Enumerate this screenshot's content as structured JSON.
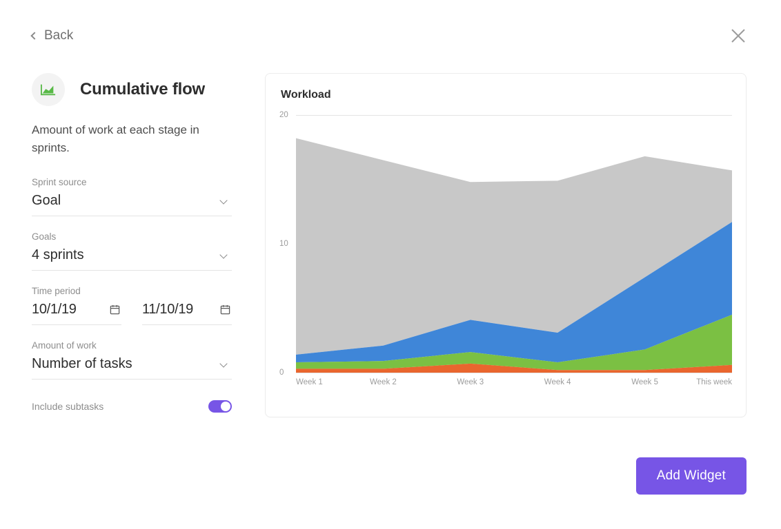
{
  "nav": {
    "back_label": "Back"
  },
  "header": {
    "title": "Cumulative flow",
    "description": "Amount of work at each stage in sprints.",
    "icon_color": "#58b947"
  },
  "form": {
    "sprint_source": {
      "label": "Sprint source",
      "value": "Goal"
    },
    "goals": {
      "label": "Goals",
      "value": "4 sprints"
    },
    "time_period": {
      "label": "Time period",
      "start": "10/1/19",
      "end": "11/10/19"
    },
    "amount_of_work": {
      "label": "Amount of work",
      "value": "Number of tasks"
    },
    "include_subtasks": {
      "label": "Include subtasks",
      "value": true
    }
  },
  "chart": {
    "title": "Workload",
    "type": "stacked-area",
    "categories": [
      "Week 1",
      "Week 2",
      "Week 3",
      "Week 4",
      "Week 5",
      "This week"
    ],
    "ylim": [
      0,
      20
    ],
    "yticks": [
      0,
      10,
      20
    ],
    "series": [
      {
        "name": "orange",
        "color": "#e9662e",
        "values": [
          0.3,
          0.3,
          0.7,
          0.2,
          0.2,
          0.6
        ]
      },
      {
        "name": "green",
        "color": "#7bc043",
        "values": [
          0.5,
          0.6,
          0.9,
          0.6,
          1.6,
          3.9
        ]
      },
      {
        "name": "blue",
        "color": "#3f86d8",
        "values": [
          0.6,
          1.2,
          2.5,
          2.3,
          5.6,
          7.2
        ]
      },
      {
        "name": "grey",
        "color": "#c8c8c8",
        "values": [
          16.8,
          14.4,
          10.7,
          11.8,
          9.4,
          4.0
        ]
      }
    ],
    "background_color": "#ffffff",
    "grid_color": "#e4e4e4",
    "tick_fontsize": 11.5,
    "tick_color": "#9c9c9c"
  },
  "actions": {
    "add_widget": "Add Widget"
  },
  "accent_color": "#7755e6"
}
